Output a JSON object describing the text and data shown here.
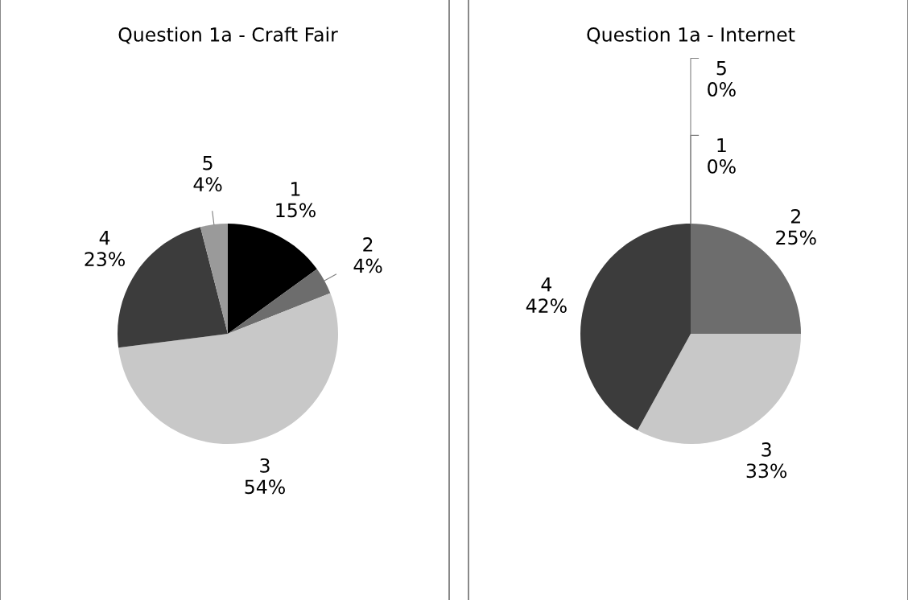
{
  "chart_data": [
    {
      "type": "pie",
      "title": "Question 1a - Craft Fair",
      "categories": [
        "1",
        "2",
        "3",
        "4",
        "5"
      ],
      "values": [
        15,
        4,
        54,
        23,
        4
      ],
      "value_labels": [
        "15%",
        "4%",
        "54%",
        "23%",
        "4%"
      ],
      "colors": [
        "#000000",
        "#6d6d6d",
        "#c8c8c8",
        "#3c3c3c",
        "#9a9a9a"
      ]
    },
    {
      "type": "pie",
      "title": "Question 1a - Internet",
      "categories": [
        "1",
        "2",
        "3",
        "4",
        "5"
      ],
      "values": [
        0,
        25,
        33,
        42,
        0
      ],
      "value_labels": [
        "0%",
        "25%",
        "33%",
        "42%",
        "0%"
      ],
      "colors": [
        "#000000",
        "#6d6d6d",
        "#c8c8c8",
        "#3c3c3c",
        "#9a9a9a"
      ]
    }
  ]
}
